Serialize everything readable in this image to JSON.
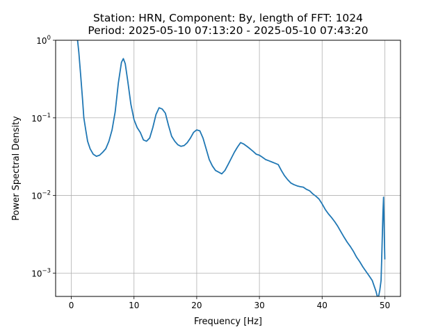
{
  "chart_data": {
    "type": "line",
    "title_line1": "Station: HRN, Component: By, length of FFT: 1024",
    "title_line2": "Period: 2025-05-10 07:13:20 - 2025-05-10 07:43:20",
    "xlabel": "Frequency [Hz]",
    "ylabel": "Power Spectral Density",
    "xlim": [
      -2.5,
      52.5
    ],
    "ylim": [
      0.0005,
      1
    ],
    "yscale": "log",
    "grid": true,
    "line_color": "#1f77b4",
    "x_ticks": [
      {
        "value": 0,
        "label": "0"
      },
      {
        "value": 10,
        "label": "10"
      },
      {
        "value": 20,
        "label": "20"
      },
      {
        "value": 30,
        "label": "30"
      },
      {
        "value": 40,
        "label": "40"
      },
      {
        "value": 50,
        "label": "50"
      }
    ],
    "y_ticks": [
      {
        "value": 0.001,
        "base": "10",
        "exp": "−3"
      },
      {
        "value": 0.01,
        "base": "10",
        "exp": "−2"
      },
      {
        "value": 0.1,
        "base": "10",
        "exp": "−1"
      },
      {
        "value": 1,
        "base": "10",
        "exp": "0"
      }
    ],
    "series": [
      {
        "x": [
          1.0,
          1.2,
          1.5,
          1.8,
          2.0,
          2.3,
          2.6,
          3.0,
          3.5,
          4.0,
          4.5,
          5.0,
          5.5,
          6.0,
          6.5,
          7.0,
          7.5,
          8.0,
          8.3,
          8.6,
          9.0,
          9.5,
          10.0,
          10.5,
          11.0,
          11.5,
          12.0,
          12.5,
          13.0,
          13.5,
          14.0,
          14.5,
          15.0,
          15.5,
          16.0,
          16.5,
          17.0,
          17.5,
          18.0,
          18.5,
          19.0,
          19.5,
          20.0,
          20.5,
          21.0,
          21.5,
          22.0,
          22.5,
          23.0,
          23.5,
          24.0,
          24.5,
          25.0,
          25.5,
          26.0,
          26.5,
          27.0,
          27.5,
          28.0,
          28.5,
          29.0,
          29.5,
          30.0,
          30.5,
          31.0,
          31.5,
          32.0,
          32.5,
          33.0,
          33.5,
          34.0,
          34.5,
          35.0,
          35.5,
          36.0,
          36.5,
          37.0,
          37.5,
          38.0,
          38.5,
          39.0,
          39.5,
          40.0,
          40.5,
          41.0,
          41.5,
          42.0,
          42.5,
          43.0,
          43.5,
          44.0,
          44.5,
          45.0,
          45.5,
          46.0,
          46.5,
          47.0,
          47.5,
          48.0,
          48.3,
          48.6,
          48.8,
          49.0,
          49.2,
          49.4,
          49.5,
          49.6,
          49.7,
          49.8,
          50.0
        ],
        "y": [
          1.0,
          0.7,
          0.35,
          0.17,
          0.1,
          0.07,
          0.05,
          0.04,
          0.034,
          0.032,
          0.033,
          0.036,
          0.04,
          0.05,
          0.07,
          0.12,
          0.28,
          0.52,
          0.58,
          0.5,
          0.3,
          0.15,
          0.095,
          0.075,
          0.065,
          0.052,
          0.05,
          0.055,
          0.075,
          0.11,
          0.135,
          0.13,
          0.115,
          0.08,
          0.058,
          0.05,
          0.045,
          0.043,
          0.044,
          0.048,
          0.055,
          0.065,
          0.07,
          0.068,
          0.055,
          0.04,
          0.029,
          0.024,
          0.021,
          0.02,
          0.019,
          0.021,
          0.025,
          0.03,
          0.036,
          0.042,
          0.048,
          0.046,
          0.043,
          0.04,
          0.037,
          0.034,
          0.033,
          0.031,
          0.029,
          0.028,
          0.027,
          0.026,
          0.025,
          0.021,
          0.018,
          0.016,
          0.0145,
          0.0138,
          0.0133,
          0.013,
          0.0128,
          0.012,
          0.0115,
          0.0105,
          0.0098,
          0.009,
          0.0078,
          0.0066,
          0.0058,
          0.0052,
          0.0046,
          0.004,
          0.0034,
          0.0029,
          0.0025,
          0.0022,
          0.0019,
          0.0016,
          0.0014,
          0.0012,
          0.00105,
          0.00092,
          0.0008,
          0.00068,
          0.00058,
          0.0005,
          0.0005,
          0.0006,
          0.0008,
          0.0015,
          0.003,
          0.006,
          0.0095,
          0.0015
        ]
      }
    ]
  }
}
